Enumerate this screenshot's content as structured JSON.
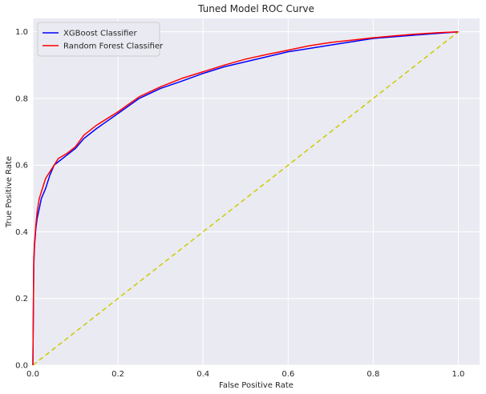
{
  "chart_data": {
    "type": "line",
    "title": "Tuned Model ROC Curve",
    "xlabel": "False Positive Rate",
    "ylabel": "True Positive Rate",
    "xlim": [
      0,
      1.05
    ],
    "ylim": [
      0,
      1.04
    ],
    "xticks": [
      "0.0",
      "0.2",
      "0.4",
      "0.6",
      "0.8",
      "1.0"
    ],
    "yticks": [
      "0.0",
      "0.2",
      "0.4",
      "0.6",
      "0.8",
      "1.0"
    ],
    "grid": true,
    "legend_position": "top-left",
    "background_color": "#eaeaf2",
    "grid_color": "#ffffff",
    "series": [
      {
        "name": "XGBoost Classifier",
        "color": "#0000ff",
        "x": [
          0.0,
          0.002,
          0.004,
          0.007,
          0.01,
          0.015,
          0.02,
          0.03,
          0.04,
          0.05,
          0.06,
          0.08,
          0.1,
          0.12,
          0.15,
          0.2,
          0.25,
          0.3,
          0.35,
          0.4,
          0.45,
          0.5,
          0.55,
          0.6,
          0.65,
          0.7,
          0.75,
          0.8,
          0.85,
          0.9,
          0.95,
          1.0
        ],
        "y": [
          0.0,
          0.3,
          0.36,
          0.41,
          0.44,
          0.47,
          0.5,
          0.53,
          0.57,
          0.6,
          0.61,
          0.63,
          0.65,
          0.68,
          0.71,
          0.755,
          0.8,
          0.83,
          0.852,
          0.875,
          0.895,
          0.91,
          0.925,
          0.94,
          0.95,
          0.96,
          0.97,
          0.98,
          0.985,
          0.99,
          0.995,
          1.0
        ]
      },
      {
        "name": "Random Forest Classifier",
        "color": "#ff0000",
        "x": [
          0.0,
          0.002,
          0.004,
          0.007,
          0.01,
          0.015,
          0.02,
          0.03,
          0.04,
          0.05,
          0.06,
          0.08,
          0.1,
          0.12,
          0.15,
          0.2,
          0.25,
          0.3,
          0.35,
          0.4,
          0.45,
          0.5,
          0.55,
          0.6,
          0.65,
          0.7,
          0.75,
          0.8,
          0.85,
          0.9,
          0.95,
          1.0
        ],
        "y": [
          0.0,
          0.32,
          0.37,
          0.42,
          0.46,
          0.5,
          0.52,
          0.56,
          0.58,
          0.6,
          0.62,
          0.635,
          0.655,
          0.69,
          0.72,
          0.76,
          0.805,
          0.835,
          0.86,
          0.88,
          0.9,
          0.918,
          0.932,
          0.945,
          0.958,
          0.968,
          0.975,
          0.982,
          0.988,
          0.993,
          0.997,
          1.0
        ]
      },
      {
        "name": "",
        "color": "#cccc00",
        "dashed": true,
        "x": [
          0,
          1
        ],
        "y": [
          0,
          1
        ]
      }
    ]
  }
}
